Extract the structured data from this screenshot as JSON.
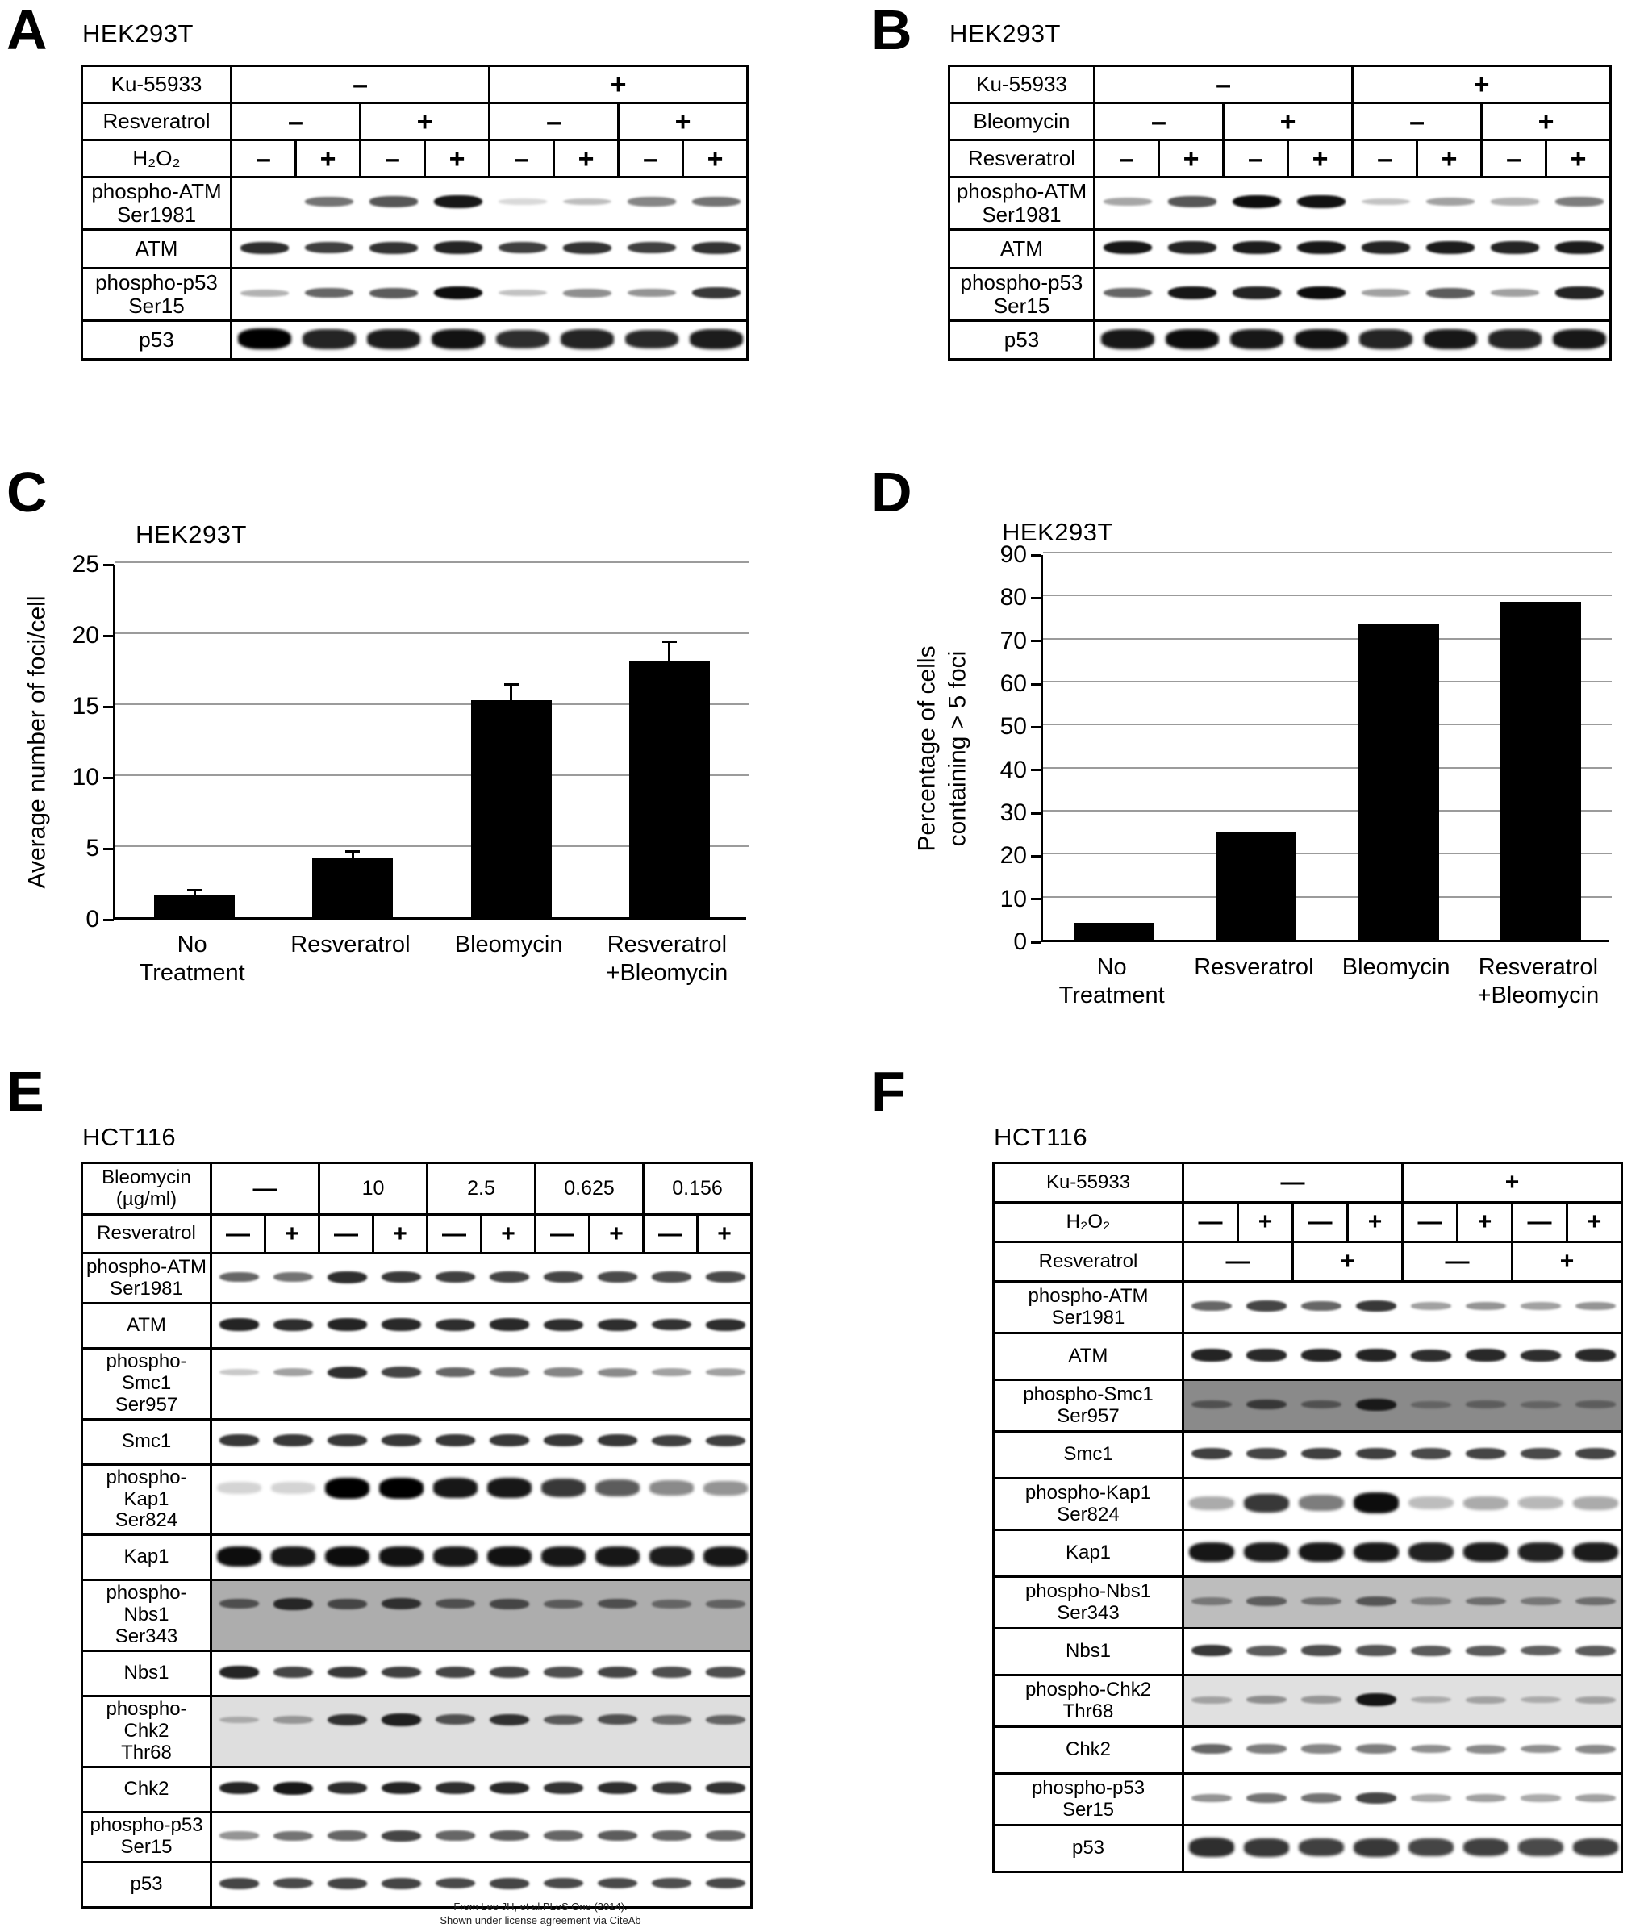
{
  "footer": {
    "line1": "From Lee JH, et al.PLoS One (2014).",
    "line2": "Shown under license agreement via CiteAb"
  },
  "panels": {
    "A": {
      "letter": "A",
      "title": "HEK293T",
      "header_rows": [
        {
          "label": "Ku-55933",
          "cells": [
            {
              "t": "–",
              "s": 4
            },
            {
              "t": "+",
              "s": 4
            }
          ]
        },
        {
          "label": "Resveratrol",
          "cells": [
            {
              "t": "–",
              "s": 2
            },
            {
              "t": "+",
              "s": 2
            },
            {
              "t": "–",
              "s": 2
            },
            {
              "t": "+",
              "s": 2
            }
          ]
        },
        {
          "label": "H₂O₂",
          "cells": [
            {
              "t": "–",
              "s": 1
            },
            {
              "t": "+",
              "s": 1
            },
            {
              "t": "–",
              "s": 1
            },
            {
              "t": "+",
              "s": 1
            },
            {
              "t": "–",
              "s": 1
            },
            {
              "t": "+",
              "s": 1
            },
            {
              "t": "–",
              "s": 1
            },
            {
              "t": "+",
              "s": 1
            }
          ]
        }
      ],
      "blot_rows": [
        {
          "label": "phospho-ATM\nSer1981",
          "bands": [
            0.04,
            0.5,
            0.62,
            0.9,
            0.05,
            0.18,
            0.42,
            0.5
          ]
        },
        {
          "label": "ATM",
          "bands": [
            0.8,
            0.72,
            0.78,
            0.85,
            0.72,
            0.78,
            0.72,
            0.78
          ]
        },
        {
          "label": "phospho-p53\nSer15",
          "bands": [
            0.22,
            0.55,
            0.6,
            0.95,
            0.15,
            0.38,
            0.35,
            0.75
          ]
        },
        {
          "label": "p53",
          "bands": [
            1.0,
            0.85,
            0.88,
            0.92,
            0.8,
            0.85,
            0.82,
            0.88
          ],
          "style": "blob"
        }
      ]
    },
    "B": {
      "letter": "B",
      "title": "HEK293T",
      "header_rows": [
        {
          "label": "Ku-55933",
          "cells": [
            {
              "t": "–",
              "s": 4
            },
            {
              "t": "+",
              "s": 4
            }
          ]
        },
        {
          "label": "Bleomycin",
          "cells": [
            {
              "t": "–",
              "s": 2
            },
            {
              "t": "+",
              "s": 2
            },
            {
              "t": "–",
              "s": 2
            },
            {
              "t": "+",
              "s": 2
            }
          ]
        },
        {
          "label": "Resveratrol",
          "cells": [
            {
              "t": "–",
              "s": 1
            },
            {
              "t": "+",
              "s": 1
            },
            {
              "t": "–",
              "s": 1
            },
            {
              "t": "+",
              "s": 1
            },
            {
              "t": "–",
              "s": 1
            },
            {
              "t": "+",
              "s": 1
            },
            {
              "t": "–",
              "s": 1
            },
            {
              "t": "+",
              "s": 1
            }
          ]
        }
      ],
      "blot_rows": [
        {
          "label": "phospho-ATM\nSer1981",
          "bands": [
            0.28,
            0.62,
            0.95,
            0.92,
            0.15,
            0.3,
            0.22,
            0.45
          ]
        },
        {
          "label": "ATM",
          "bands": [
            0.9,
            0.85,
            0.88,
            0.9,
            0.85,
            0.88,
            0.85,
            0.88
          ]
        },
        {
          "label": "phospho-p53\nSer15",
          "bands": [
            0.55,
            0.9,
            0.85,
            0.95,
            0.3,
            0.6,
            0.3,
            0.85
          ]
        },
        {
          "label": "p53",
          "bands": [
            0.9,
            0.95,
            0.9,
            0.92,
            0.85,
            0.9,
            0.85,
            0.9
          ],
          "style": "blob"
        }
      ]
    },
    "C": {
      "letter": "C"
    },
    "D": {
      "letter": "D"
    },
    "E": {
      "letter": "E",
      "title": "HCT116",
      "header_rows": [
        {
          "label": "Bleomycin\n(µg/ml)",
          "cells": [
            {
              "t": "—",
              "s": 2
            },
            {
              "t": "10",
              "s": 2
            },
            {
              "t": "2.5",
              "s": 2
            },
            {
              "t": "0.625",
              "s": 2
            },
            {
              "t": "0.156",
              "s": 2
            }
          ]
        },
        {
          "label": "Resveratrol",
          "cells": [
            {
              "t": "—",
              "s": 1
            },
            {
              "t": "+",
              "s": 1
            },
            {
              "t": "—",
              "s": 1
            },
            {
              "t": "+",
              "s": 1
            },
            {
              "t": "—",
              "s": 1
            },
            {
              "t": "+",
              "s": 1
            },
            {
              "t": "—",
              "s": 1
            },
            {
              "t": "+",
              "s": 1
            },
            {
              "t": "—",
              "s": 1
            },
            {
              "t": "+",
              "s": 1
            }
          ]
        }
      ],
      "blot_rows": [
        {
          "label": "phospho-ATM\nSer1981",
          "bands": [
            0.55,
            0.5,
            0.8,
            0.75,
            0.72,
            0.7,
            0.7,
            0.68,
            0.65,
            0.68
          ]
        },
        {
          "label": "ATM",
          "bands": [
            0.85,
            0.8,
            0.85,
            0.82,
            0.8,
            0.82,
            0.8,
            0.8,
            0.78,
            0.8
          ]
        },
        {
          "label": "phospho-Smc1\nSer957",
          "bands": [
            0.12,
            0.3,
            0.8,
            0.7,
            0.55,
            0.5,
            0.42,
            0.4,
            0.3,
            0.3
          ]
        },
        {
          "label": "Smc1",
          "bands": [
            0.75,
            0.75,
            0.75,
            0.75,
            0.75,
            0.75,
            0.75,
            0.75,
            0.72,
            0.72
          ]
        },
        {
          "label": "phospho-Kap1\nSer824",
          "bands": [
            0.08,
            0.08,
            1.0,
            1.0,
            0.9,
            0.9,
            0.75,
            0.6,
            0.4,
            0.35
          ],
          "style": "blob"
        },
        {
          "label": "Kap1",
          "bands": [
            0.95,
            0.9,
            0.95,
            0.92,
            0.9,
            0.92,
            0.9,
            0.9,
            0.88,
            0.9
          ],
          "style": "blob"
        },
        {
          "label": "phospho-Nbs1\nSer343",
          "bands": [
            0.5,
            0.75,
            0.55,
            0.7,
            0.5,
            0.55,
            0.42,
            0.5,
            0.35,
            0.38
          ],
          "bg": "#adadad"
        },
        {
          "label": "Nbs1",
          "bands": [
            0.85,
            0.7,
            0.75,
            0.72,
            0.7,
            0.7,
            0.65,
            0.7,
            0.65,
            0.65
          ]
        },
        {
          "label": "phospho-Chk2\nThr68",
          "bands": [
            0.15,
            0.25,
            0.75,
            0.85,
            0.6,
            0.75,
            0.55,
            0.6,
            0.45,
            0.5
          ],
          "bg": "#dedede"
        },
        {
          "label": "Chk2",
          "bands": [
            0.85,
            0.9,
            0.8,
            0.85,
            0.8,
            0.82,
            0.78,
            0.8,
            0.75,
            0.78
          ]
        },
        {
          "label": "phospho-p53\nSer15",
          "bands": [
            0.35,
            0.5,
            0.55,
            0.7,
            0.55,
            0.6,
            0.55,
            0.6,
            0.55,
            0.55
          ]
        },
        {
          "label": "p53",
          "bands": [
            0.7,
            0.68,
            0.7,
            0.7,
            0.68,
            0.7,
            0.68,
            0.68,
            0.66,
            0.68
          ]
        }
      ]
    },
    "F": {
      "letter": "F",
      "title": "HCT116",
      "header_rows": [
        {
          "label": "Ku-55933",
          "cells": [
            {
              "t": "—",
              "s": 4
            },
            {
              "t": "+",
              "s": 4
            }
          ]
        },
        {
          "label": "H₂O₂",
          "cells": [
            {
              "t": "—",
              "s": 1
            },
            {
              "t": "+",
              "s": 1
            },
            {
              "t": "—",
              "s": 1
            },
            {
              "t": "+",
              "s": 1
            },
            {
              "t": "—",
              "s": 1
            },
            {
              "t": "+",
              "s": 1
            },
            {
              "t": "—",
              "s": 1
            },
            {
              "t": "+",
              "s": 1
            }
          ]
        },
        {
          "label": "Resveratrol",
          "cells": [
            {
              "t": "—",
              "s": 2
            },
            {
              "t": "+",
              "s": 2
            },
            {
              "t": "—",
              "s": 2
            },
            {
              "t": "+",
              "s": 2
            }
          ]
        }
      ],
      "blot_rows": [
        {
          "label": "phospho-ATM\nSer1981",
          "bands": [
            0.55,
            0.7,
            0.55,
            0.75,
            0.3,
            0.35,
            0.3,
            0.35
          ]
        },
        {
          "label": "ATM",
          "bands": [
            0.85,
            0.82,
            0.85,
            0.85,
            0.8,
            0.82,
            0.8,
            0.82
          ]
        },
        {
          "label": "phospho-Smc1\nSer957",
          "bands": [
            0.35,
            0.55,
            0.35,
            0.8,
            0.2,
            0.25,
            0.2,
            0.25
          ],
          "bg": "#8a8a8a"
        },
        {
          "label": "Smc1",
          "bands": [
            0.72,
            0.7,
            0.72,
            0.72,
            0.68,
            0.7,
            0.68,
            0.7
          ]
        },
        {
          "label": "phospho-Kap1\nSer824",
          "bands": [
            0.25,
            0.75,
            0.45,
            0.95,
            0.18,
            0.25,
            0.2,
            0.25
          ],
          "style": "blob"
        },
        {
          "label": "Kap1",
          "bands": [
            0.9,
            0.88,
            0.9,
            0.9,
            0.86,
            0.88,
            0.86,
            0.88
          ],
          "style": "blob"
        },
        {
          "label": "phospho-Nbs1\nSer343",
          "bands": [
            0.3,
            0.45,
            0.35,
            0.5,
            0.25,
            0.35,
            0.3,
            0.35
          ],
          "bg": "#bdbdbd"
        },
        {
          "label": "Nbs1",
          "bands": [
            0.75,
            0.6,
            0.65,
            0.62,
            0.6,
            0.6,
            0.58,
            0.6
          ]
        },
        {
          "label": "phospho-Chk2\nThr68",
          "bands": [
            0.2,
            0.3,
            0.25,
            0.9,
            0.15,
            0.2,
            0.15,
            0.2
          ],
          "bg": "#e0e0e0"
        },
        {
          "label": "Chk2",
          "bands": [
            0.55,
            0.45,
            0.42,
            0.45,
            0.38,
            0.4,
            0.38,
            0.4
          ]
        },
        {
          "label": "phospho-p53\nSer15",
          "bands": [
            0.35,
            0.5,
            0.5,
            0.7,
            0.25,
            0.3,
            0.25,
            0.3
          ]
        },
        {
          "label": "p53",
          "bands": [
            0.8,
            0.75,
            0.72,
            0.75,
            0.7,
            0.72,
            0.68,
            0.72
          ],
          "style": "blob"
        }
      ]
    }
  },
  "chart_data": [
    {
      "panel": "C",
      "type": "bar",
      "title": "HEK293T",
      "xlabel": "",
      "ylabel": "Average number of foci/cell",
      "categories": [
        "No\nTreatment",
        "Resveratrol",
        "Bleomycin",
        "Resveratrol\n+Bleomycin"
      ],
      "values": [
        1.6,
        4.2,
        15.3,
        18.0
      ],
      "errors": [
        0.2,
        0.35,
        1.0,
        1.3
      ],
      "ylim": [
        0,
        25
      ],
      "ytick_step": 5,
      "grid": true,
      "legend": "none",
      "bar_color": "#000000"
    },
    {
      "panel": "D",
      "type": "bar",
      "title": "HEK293T",
      "xlabel": "",
      "ylabel": "Percentage of cells\ncontaining > 5 foci",
      "categories": [
        "No\nTreatment",
        "Resveratrol",
        "Bleomycin",
        "Resveratrol\n+Bleomycin"
      ],
      "values": [
        4,
        25,
        73.5,
        78.5
      ],
      "errors": [
        0,
        0,
        0,
        0
      ],
      "ylim": [
        0,
        90
      ],
      "ytick_step": 10,
      "grid": true,
      "legend": "none",
      "bar_color": "#000000"
    }
  ]
}
